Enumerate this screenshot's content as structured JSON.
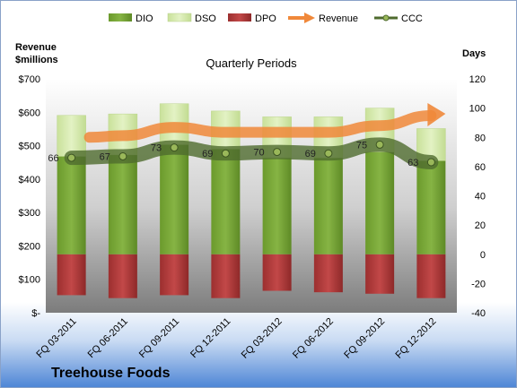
{
  "chart_data": {
    "type": "bar",
    "subtitle": "Quarterly Periods",
    "company": "Treehouse Foods",
    "y_left_title_line1": "Revenue",
    "y_left_title_line2": "$millions",
    "y_right_title": "Days",
    "y_left_lim": [
      0,
      700
    ],
    "y_left_ticks": [
      "$-",
      "$100",
      "$200",
      "$300",
      "$400",
      "$500",
      "$600",
      "$700"
    ],
    "y_right_lim": [
      -40,
      120
    ],
    "y_right_ticks": [
      "-40",
      "-20",
      "0",
      "20",
      "40",
      "60",
      "80",
      "100",
      "120"
    ],
    "legend_position": "top",
    "categories": [
      "FQ 03-2011",
      "FQ 06-2011",
      "FQ 09-2011",
      "FQ 12-2011",
      "FQ 03-2012",
      "FQ 06-2012",
      "FQ 09-2012",
      "FQ 12-2012"
    ],
    "series": [
      {
        "name": "DIO",
        "axis": "right",
        "kind": "stacked-bar",
        "color": "#7aa83a",
        "values": [
          67,
          68,
          75,
          72,
          66,
          66,
          70,
          64
        ]
      },
      {
        "name": "DSO",
        "axis": "right",
        "kind": "stacked-bar",
        "color": "#d6ecac",
        "values": [
          28,
          28,
          28,
          26,
          28,
          28,
          30,
          22
        ]
      },
      {
        "name": "DPO",
        "axis": "right",
        "kind": "negative-bar",
        "color": "#b33a3a",
        "values": [
          -28,
          -30,
          -28,
          -30,
          -25,
          -26,
          -27,
          -30
        ]
      },
      {
        "name": "Revenue",
        "axis": "left",
        "kind": "arrow-line",
        "color": "#f0883a",
        "values": [
          525,
          530,
          555,
          540,
          540,
          540,
          560,
          590
        ]
      },
      {
        "name": "CCC",
        "axis": "right",
        "kind": "line",
        "color": "#4f6b2e",
        "values": [
          66,
          67,
          73,
          69,
          70,
          69,
          75,
          63
        ]
      }
    ],
    "ccc_labels": [
      "66",
      "67",
      "73",
      "69",
      "70",
      "69",
      "75",
      "63"
    ],
    "grid": false
  }
}
